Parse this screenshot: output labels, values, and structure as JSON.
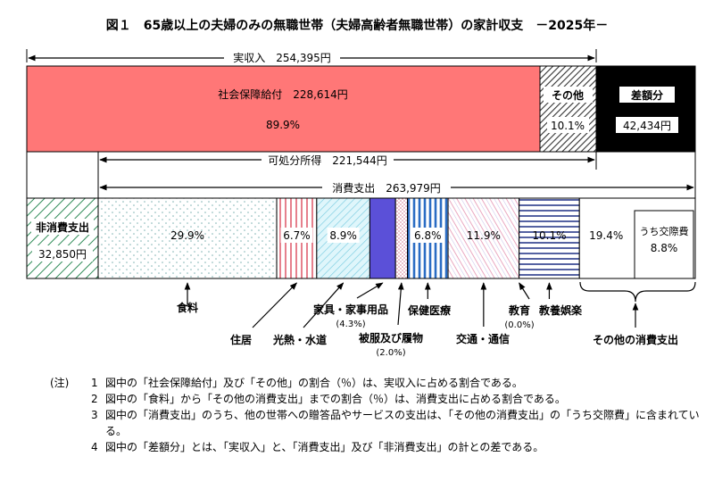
{
  "chart_data": {
    "type": "bar",
    "title": "図１　65歳以上の夫婦のみの無職世帯（夫婦高齢者無職世帯）の家計収支　－2025年－",
    "income": {
      "label": "実収入　254,395円",
      "value": 254395,
      "segments": [
        {
          "name": "社会保障給付",
          "label": "社会保障給付　228,614円",
          "value": 228614,
          "share_label": "89.9%",
          "share": 89.9,
          "color": "#ff7777"
        },
        {
          "name": "その他",
          "label": "その他",
          "share_label": "10.1%",
          "share": 10.1,
          "color": "hatch"
        },
        {
          "name": "差額分",
          "label": "差額分",
          "value": 42434,
          "value_label": "42,434円",
          "color": "#000000"
        }
      ]
    },
    "disposable": {
      "label": "可処分所得　221,544円",
      "value": 221544
    },
    "consumption_total": {
      "label": "消費支出　263,979円",
      "value": 263979
    },
    "non_consumption": {
      "label": "非消費支出",
      "value": 32850,
      "value_label": "32,850円"
    },
    "categories": [
      "食料",
      "住居",
      "光熱・水道",
      "家具・家事用品",
      "被服及び履物",
      "保健医療",
      "交通・通信",
      "教育",
      "教養娯楽",
      "その他の消費支出"
    ],
    "values": [
      29.9,
      6.7,
      8.9,
      4.3,
      2.0,
      6.8,
      11.9,
      0.0,
      10.1,
      19.4
    ],
    "bar_labels": [
      "29.9%",
      "6.7%",
      "8.9%",
      "",
      "",
      "6.8%",
      "11.9%",
      "",
      "10.1%",
      "19.4%"
    ],
    "callouts": [
      {
        "label": "食料"
      },
      {
        "label": "住居"
      },
      {
        "label": "光熱・水道"
      },
      {
        "label": "家具・家事用品",
        "sub": "(4.3%)"
      },
      {
        "label": "被服及び履物",
        "sub": "(2.0%)"
      },
      {
        "label": "保健医療"
      },
      {
        "label": "交通・通信"
      },
      {
        "label": "教育",
        "sub": "(0.0%)"
      },
      {
        "label": "教養娯楽"
      },
      {
        "label": "その他の消費支出"
      }
    ],
    "inner_box": {
      "label": "うち交際費",
      "value_label": "8.8%",
      "value": 8.8
    }
  },
  "notes": {
    "heading": "(注)",
    "items": [
      {
        "num": "1",
        "text": "図中の「社会保障給付」及び「その他」の割合（％）は、実収入に占める割合である。"
      },
      {
        "num": "2",
        "text": "図中の「食料」から「その他の消費支出」までの割合（％）は、消費支出に占める割合である。"
      },
      {
        "num": "3",
        "text": "図中の「消費支出」のうち、他の世帯への贈答品やサービスの支出は、「その他の消費支出」の「うち交際費」に含まれている。"
      },
      {
        "num": "4",
        "text": "図中の「差額分」とは、「実収入」と、「消費支出」及び「非消費支出」の計との差である。"
      }
    ]
  }
}
